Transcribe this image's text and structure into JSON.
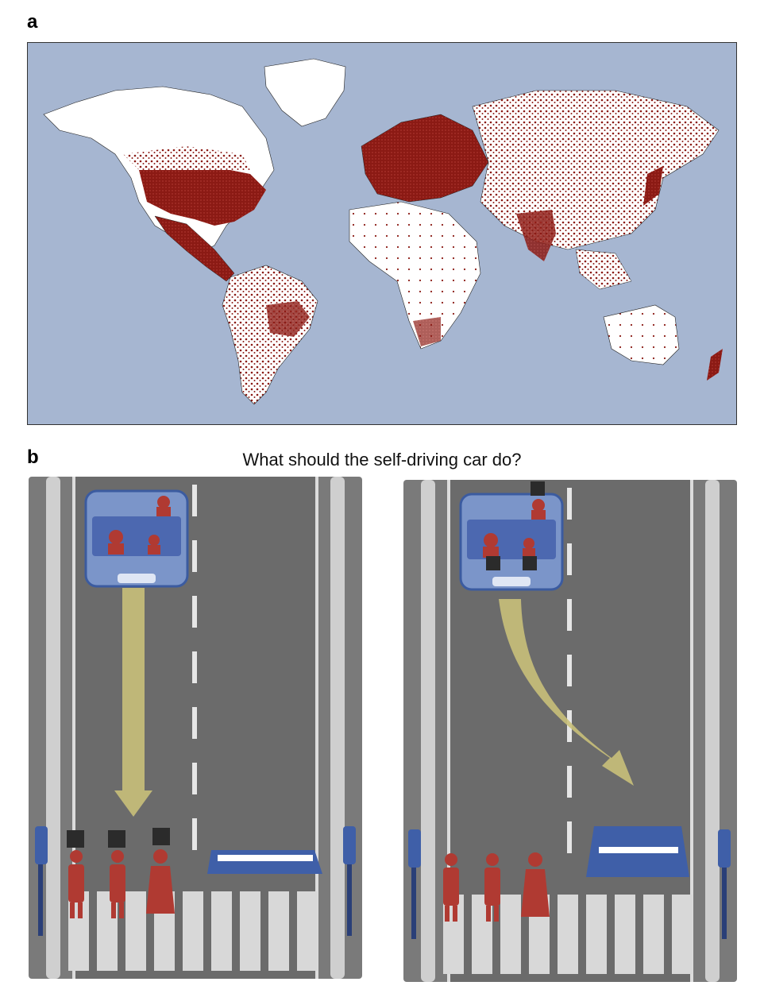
{
  "panels": {
    "a": {
      "label": "a"
    },
    "b": {
      "label": "b",
      "question": "What should the self-driving car do?"
    }
  },
  "map": {
    "ocean_color": "#a6b6d1",
    "land_color": "#ffffff",
    "point_color": "#8b1a14"
  },
  "scenarios": [
    {
      "id": "stay",
      "car_occupants": [
        "adult",
        "adult",
        "child"
      ],
      "occupants_killed": false,
      "pedestrians": [
        "elderly-man",
        "elderly-man",
        "elderly-woman"
      ],
      "pedestrians_killed": true,
      "barrier_hit": false,
      "arrow": "straight"
    },
    {
      "id": "swerve",
      "car_occupants": [
        "adult",
        "adult",
        "child"
      ],
      "occupants_killed": true,
      "pedestrians": [
        "elderly-man",
        "elderly-man",
        "elderly-woman"
      ],
      "pedestrians_killed": false,
      "barrier_hit": true,
      "arrow": "swerve"
    }
  ],
  "colors": {
    "road": "#6b6b6b",
    "car": "#7b95c9",
    "person": "#b03a32",
    "arrow": "#c9c07a",
    "barrier": "#3f5fa8"
  },
  "icons": [
    "skull-icon",
    "traffic-light-icon"
  ]
}
